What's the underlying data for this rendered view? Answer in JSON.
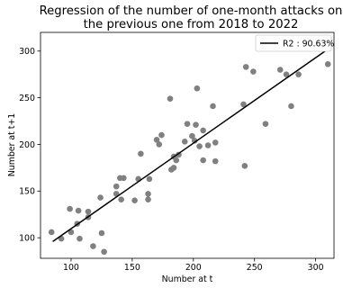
{
  "chart_data": {
    "type": "scatter",
    "title_lines": [
      "Regression of the number of one-month attacks on",
      "the previous one from 2018 to 2022"
    ],
    "xlabel": "Number at t",
    "ylabel": "Number at t+1",
    "xlim": [
      75,
      315
    ],
    "ylim": [
      78,
      320
    ],
    "xticks": [
      100,
      150,
      200,
      250,
      300
    ],
    "yticks": [
      100,
      150,
      200,
      250,
      300
    ],
    "grid": false,
    "legend": {
      "placement": "top-right",
      "label": "R2 : 90.63%"
    },
    "colors": {
      "points": "#808080",
      "line": "#000000"
    },
    "fit_line": {
      "x": [
        85,
        310
      ],
      "y": [
        96,
        302
      ]
    },
    "points": [
      [
        84,
        106
      ],
      [
        92,
        99
      ],
      [
        99,
        131
      ],
      [
        100,
        106
      ],
      [
        105,
        115
      ],
      [
        106,
        129
      ],
      [
        107,
        99
      ],
      [
        114,
        128
      ],
      [
        114,
        122
      ],
      [
        118,
        91
      ],
      [
        124,
        143
      ],
      [
        125,
        105
      ],
      [
        127,
        85
      ],
      [
        137,
        155
      ],
      [
        137,
        147
      ],
      [
        140,
        164
      ],
      [
        141,
        141
      ],
      [
        143,
        164
      ],
      [
        152,
        140
      ],
      [
        155,
        163
      ],
      [
        157,
        190
      ],
      [
        163,
        147
      ],
      [
        163,
        141
      ],
      [
        164,
        163
      ],
      [
        170,
        205
      ],
      [
        172,
        200
      ],
      [
        174,
        210
      ],
      [
        181,
        249
      ],
      [
        182,
        173
      ],
      [
        184,
        175
      ],
      [
        184,
        187
      ],
      [
        186,
        183
      ],
      [
        188,
        189
      ],
      [
        193,
        203
      ],
      [
        195,
        222
      ],
      [
        199,
        209
      ],
      [
        201,
        204
      ],
      [
        202,
        221
      ],
      [
        203,
        260
      ],
      [
        205,
        198
      ],
      [
        208,
        183
      ],
      [
        208,
        215
      ],
      [
        212,
        199
      ],
      [
        216,
        241
      ],
      [
        218,
        202
      ],
      [
        218,
        182
      ],
      [
        241,
        243
      ],
      [
        242,
        177
      ],
      [
        243,
        283
      ],
      [
        249,
        278
      ],
      [
        259,
        222
      ],
      [
        271,
        280
      ],
      [
        276,
        275
      ],
      [
        280,
        241
      ],
      [
        286,
        275
      ],
      [
        310,
        286
      ]
    ]
  }
}
